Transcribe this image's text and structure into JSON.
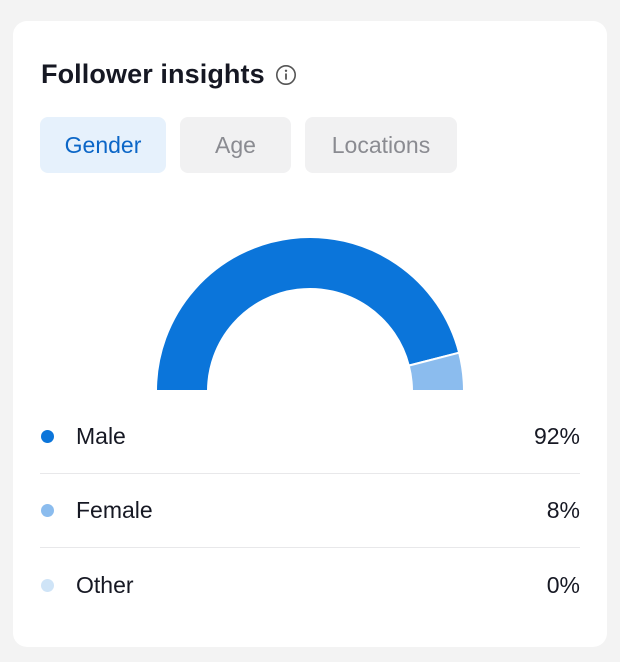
{
  "header": {
    "title": "Follower insights",
    "info_icon": "info-circle-icon"
  },
  "tabs": [
    {
      "label": "Gender",
      "active": true
    },
    {
      "label": "Age",
      "active": false
    },
    {
      "label": "Locations",
      "active": false
    }
  ],
  "chart_data": {
    "type": "pie",
    "style": "semi-donut",
    "categories": [
      "Male",
      "Female",
      "Other"
    ],
    "values": [
      92,
      8,
      0
    ],
    "colors": [
      "#0b75da",
      "#8bbcee",
      "#cfe4f7"
    ]
  },
  "legend": [
    {
      "label": "Male",
      "value": "92%",
      "color": "#0b75da"
    },
    {
      "label": "Female",
      "value": "8%",
      "color": "#8bbcee"
    },
    {
      "label": "Other",
      "value": "0%",
      "color": "#cfe4f7"
    }
  ]
}
